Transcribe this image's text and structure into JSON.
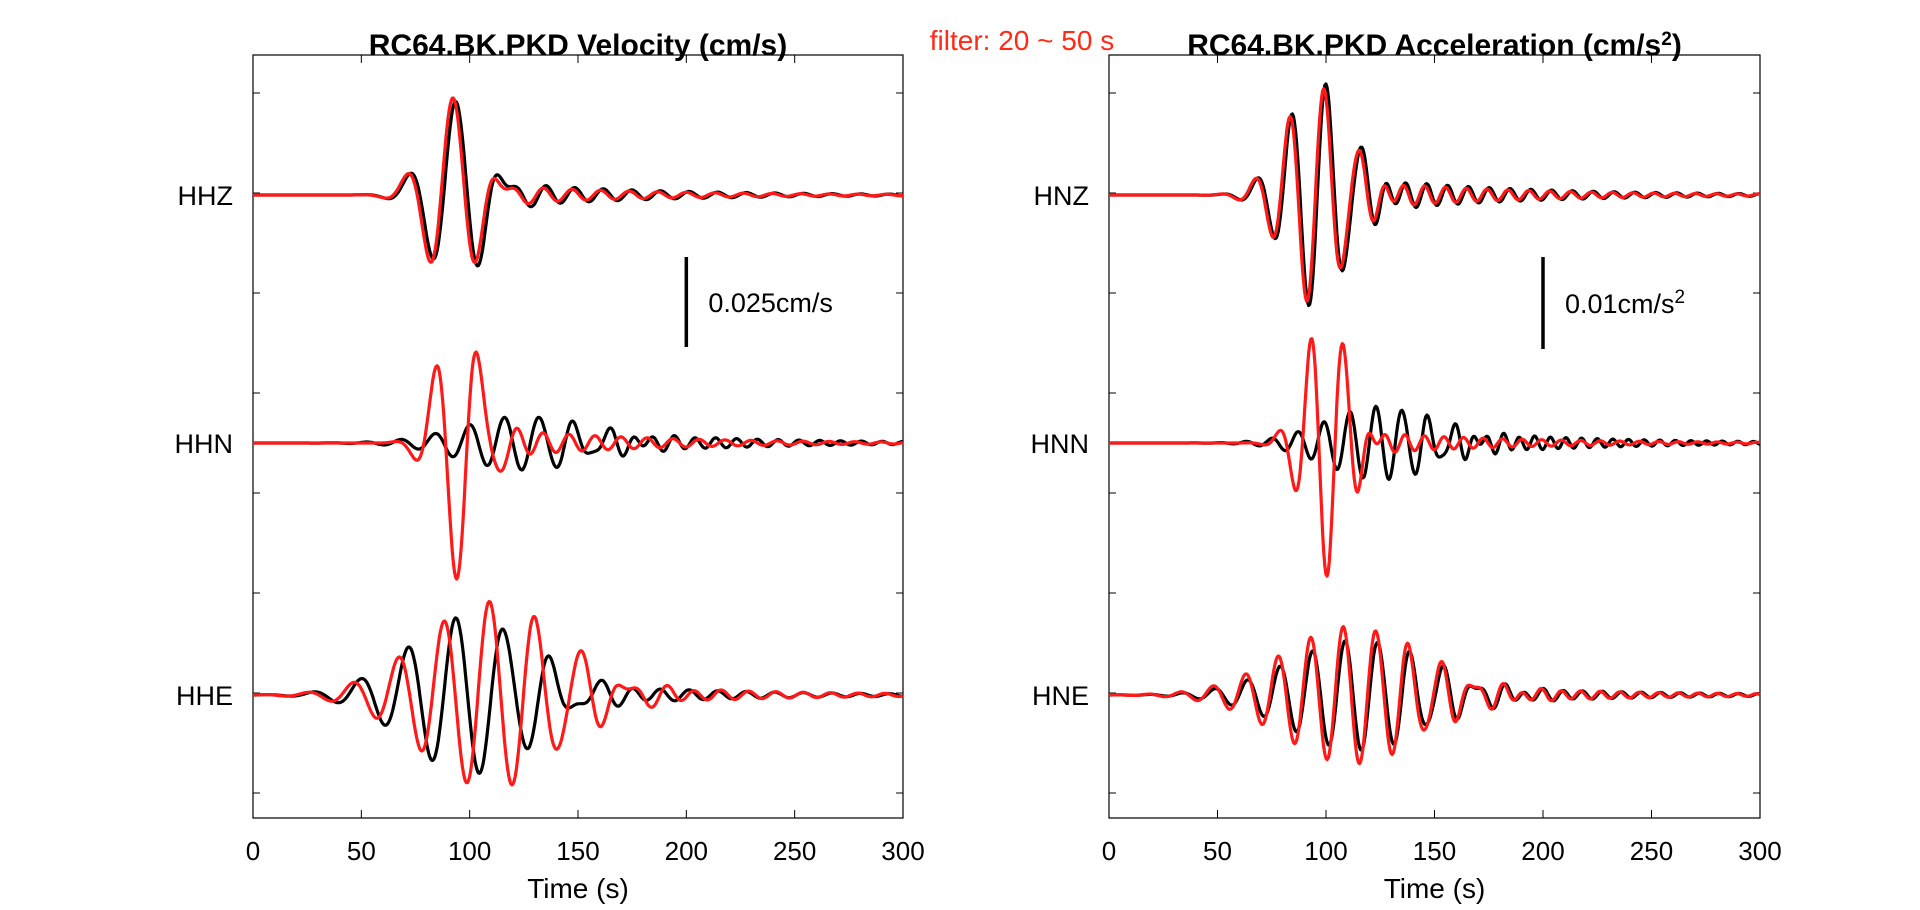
{
  "filter_label": "filter: 20 ~ 50 s",
  "colors": {
    "observed": "#000000",
    "synthetic": "#ff1a1a",
    "filter_text": "#ff2a16"
  },
  "chart_data": [
    {
      "type": "line",
      "title": "RC64.BK.PKD Velocity (cm/s)",
      "xlabel": "Time (s)",
      "xlim": [
        0,
        300
      ],
      "xticks": [
        "0",
        "50",
        "100",
        "150",
        "200",
        "250",
        "300"
      ],
      "scale_bar": {
        "label": "0.025cm/s",
        "value": 0.025,
        "x": 200
      },
      "channels": [
        {
          "name": "HHZ",
          "observed": {
            "t0": 94,
            "sigma": 18,
            "period": 22,
            "amp": 0.026,
            "coda": 0.0045
          },
          "synthetic": {
            "t0": 92,
            "sigma": 17,
            "period": 22,
            "amp": 0.027,
            "coda": 0.0035
          }
        },
        {
          "name": "HHN",
          "observed": {
            "t0": 125,
            "sigma": 40,
            "period": 16,
            "amp": 0.0075,
            "coda": 0.005
          },
          "synthetic": {
            "t0": 95,
            "sigma": 14,
            "period": 20,
            "amp": 0.038,
            "coda": 0.005
          }
        },
        {
          "name": "HHE",
          "observed": {
            "t0": 100,
            "sigma": 40,
            "period": 22,
            "amp": 0.022,
            "coda": 0.006
          },
          "synthetic": {
            "t0": 110,
            "sigma": 45,
            "period": 21,
            "amp": 0.026,
            "coda": 0.006
          }
        }
      ]
    },
    {
      "type": "line",
      "title": "RC64.BK.PKD Acceleration (cm/s²)",
      "xlabel": "Time (s)",
      "xlim": [
        0,
        300
      ],
      "xticks": [
        "0",
        "50",
        "100",
        "150",
        "200",
        "250",
        "300"
      ],
      "scale_bar": {
        "label": "0.01cm/s²",
        "value": 0.01,
        "x": 200
      },
      "channels": [
        {
          "name": "HNZ",
          "observed": {
            "t0": 96,
            "sigma": 20,
            "period": 16,
            "amp": 0.0125,
            "coda": 0.0025
          },
          "synthetic": {
            "t0": 95,
            "sigma": 20,
            "period": 16,
            "amp": 0.012,
            "coda": 0.002
          }
        },
        {
          "name": "HNN",
          "observed": {
            "t0": 125,
            "sigma": 35,
            "period": 12,
            "amp": 0.004,
            "coda": 0.002
          },
          "synthetic": {
            "t0": 100,
            "sigma": 14,
            "period": 15,
            "amp": 0.0145,
            "coda": 0.0015
          }
        },
        {
          "name": "HNE",
          "observed": {
            "t0": 115,
            "sigma": 45,
            "period": 15,
            "amp": 0.006,
            "coda": 0.002
          },
          "synthetic": {
            "t0": 112,
            "sigma": 45,
            "period": 15,
            "amp": 0.0075,
            "coda": 0.002
          }
        }
      ]
    }
  ]
}
